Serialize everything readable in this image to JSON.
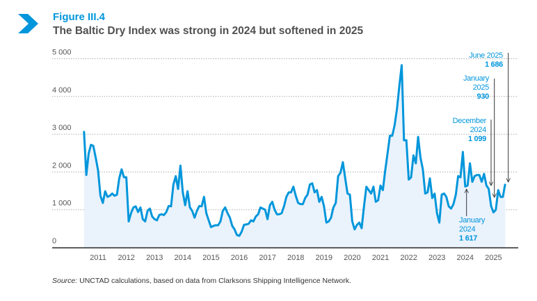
{
  "header": {
    "figure_label": "Figure III.4",
    "title": "The Baltic Dry Index was strong in 2024 but softened in 2025"
  },
  "source": {
    "prefix": "Source:",
    "text": " UNCTAD calculations, based on data from Clarksons Shipping Intelligence Network."
  },
  "colors": {
    "accent": "#0096DB",
    "fill": "#EAF2FC",
    "title": "#505050",
    "axis": "#222222"
  },
  "chart_data": {
    "type": "area",
    "title": "The Baltic Dry Index was strong in 2024 but softened in 2025",
    "xlabel": "",
    "ylabel": "",
    "ylim": [
      0,
      5000
    ],
    "y_ticks": [
      0,
      1000,
      2000,
      3000,
      4000,
      5000
    ],
    "y_tick_labels": [
      "0",
      "1 000",
      "2 000",
      "3 000",
      "4 000",
      "5 000"
    ],
    "x_ticks": [
      2011,
      2012,
      2013,
      2014,
      2015,
      2016,
      2017,
      2018,
      2019,
      2020,
      2021,
      2022,
      2023,
      2024,
      2025
    ],
    "x_tick_labels": [
      "2011",
      "2012",
      "2013",
      "2014",
      "2015",
      "2016",
      "2017",
      "2018",
      "2019",
      "2020",
      "2021",
      "2022",
      "2023",
      "2024",
      "2025"
    ],
    "grid": "horizontal dotted",
    "series": [
      {
        "name": "Baltic Dry Index (monthly)",
        "start": "2010-07",
        "frequency": "monthly",
        "values": [
          3085,
          1920,
          2500,
          2720,
          2690,
          2380,
          2040,
          1370,
          1180,
          1490,
          1340,
          1370,
          1430,
          1370,
          1400,
          1830,
          2070,
          1860,
          1860,
          690,
          910,
          1060,
          1090,
          940,
          1060,
          750,
          690,
          970,
          1030,
          820,
          750,
          720,
          860,
          880,
          860,
          940,
          1100,
          1090,
          1670,
          1890,
          1550,
          2170,
          1460,
          1120,
          1490,
          1060,
          970,
          790,
          970,
          1100,
          1090,
          1340,
          910,
          720,
          540,
          570,
          590,
          590,
          690,
          970,
          1060,
          910,
          790,
          570,
          480,
          330,
          310,
          420,
          600,
          610,
          630,
          720,
          690,
          820,
          880,
          1060,
          1030,
          1000,
          750,
          1120,
          1210,
          1000,
          880,
          880,
          910,
          1090,
          1340,
          1460,
          1460,
          1610,
          1370,
          1180,
          1150,
          1150,
          1310,
          1400,
          1670,
          1700,
          1460,
          1520,
          1210,
          1340,
          1090,
          660,
          690,
          790,
          1060,
          1180,
          1890,
          1980,
          2260,
          1830,
          1430,
          1400,
          690,
          480,
          600,
          660,
          510,
          1090,
          1610,
          1520,
          1430,
          1610,
          1210,
          1250,
          1640,
          1520,
          2040,
          2500,
          2960,
          2960,
          3240,
          3670,
          4280,
          4830,
          2840,
          2840,
          1800,
          1860,
          2440,
          2230,
          2930,
          2380,
          2070,
          1430,
          1460,
          1830,
          1310,
          1430,
          910,
          660,
          1400,
          1430,
          1340,
          1090,
          1030,
          1150,
          1400,
          1890,
          1860,
          2530,
          1617,
          1640,
          2230,
          1740,
          1890,
          1920,
          1920,
          1740,
          1950,
          1640,
          1550,
          1099,
          930,
          1000,
          1520,
          1340,
          1340,
          1686
        ]
      }
    ],
    "annotations": [
      {
        "date": "2025-06",
        "label_lines": [
          "June 2025"
        ],
        "value_label": "1 686",
        "value": 1686
      },
      {
        "date": "2025-01",
        "label_lines": [
          "January",
          "2025"
        ],
        "value_label": "930",
        "value": 930
      },
      {
        "date": "2024-12",
        "label_lines": [
          "December",
          "2024"
        ],
        "value_label": "1 099",
        "value": 1099
      },
      {
        "date": "2024-01",
        "label_lines": [
          "January",
          "2024"
        ],
        "value_label": "1 617",
        "value": 1617
      }
    ]
  }
}
